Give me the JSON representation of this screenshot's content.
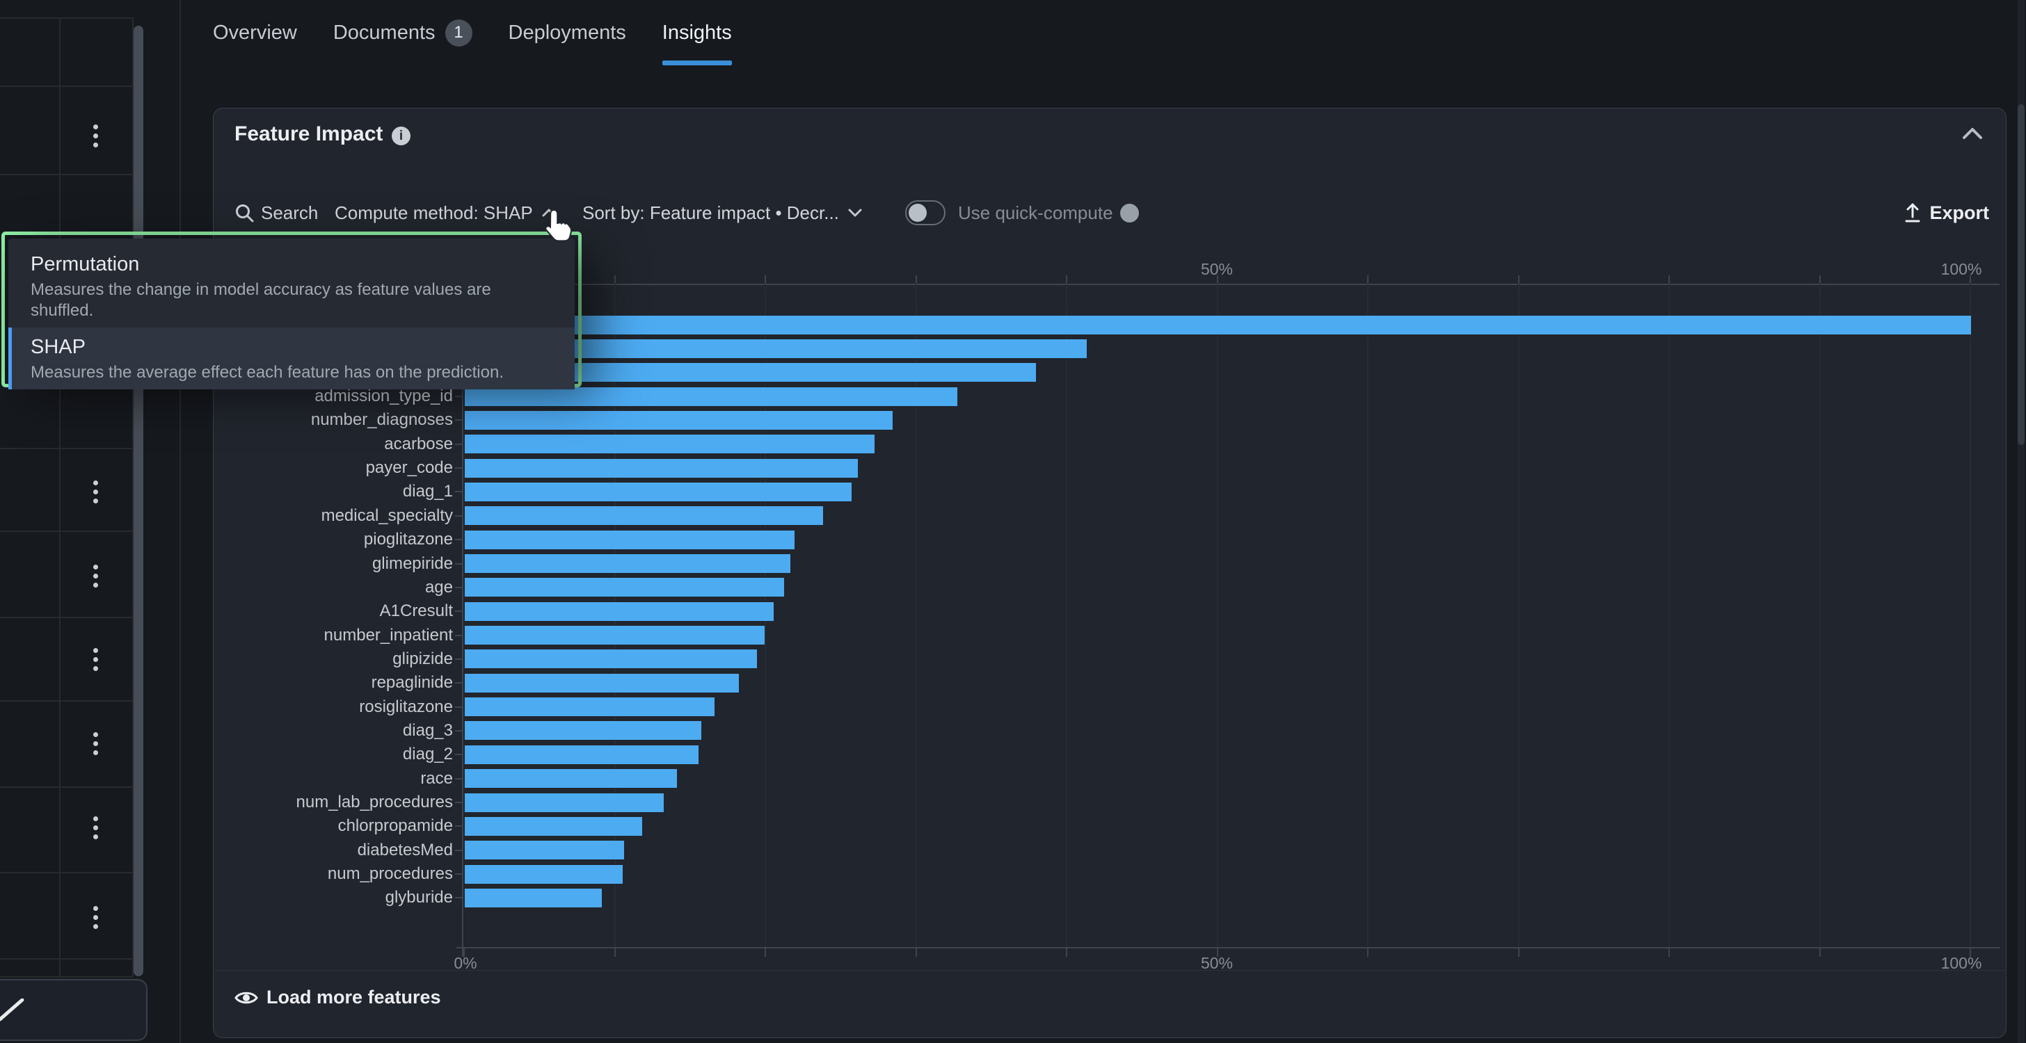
{
  "tabs": {
    "items": [
      {
        "label": "Overview",
        "active": false,
        "badge": null
      },
      {
        "label": "Documents",
        "active": false,
        "badge": "1"
      },
      {
        "label": "Deployments",
        "active": false,
        "badge": null
      },
      {
        "label": "Insights",
        "active": true,
        "badge": null
      }
    ]
  },
  "panel": {
    "title": "Feature Impact",
    "toolbar": {
      "search_label": "Search",
      "compute_method_label": "Compute method: SHAP",
      "sort_by_label": "Sort by: Feature impact • Decr...",
      "use_quick_compute_label": "Use quick-compute",
      "quick_compute_on": false,
      "export_label": "Export"
    },
    "footer": {
      "load_more_label": "Load more features"
    }
  },
  "compute_method_dropdown": {
    "options": [
      {
        "title": "Permutation",
        "description": "Measures the change in model accuracy as feature values are shuffled.",
        "selected": false
      },
      {
        "title": "SHAP",
        "description": "Measures the average effect each feature has on the prediction.",
        "selected": true
      }
    ]
  },
  "chart_data": {
    "type": "bar",
    "orientation": "horizontal",
    "title": "Feature Impact",
    "xlim": [
      0,
      100
    ],
    "grid_interval_pct": 10,
    "top_axis_ticks": [
      "50%",
      "100%"
    ],
    "bottom_axis_ticks": [
      "0%",
      "50%",
      "100%"
    ],
    "bar_color": "#4dabf2",
    "categories": [
      null,
      null,
      null,
      "admission_type_id",
      "number_diagnoses",
      "acarbose",
      "payer_code",
      "diag_1",
      "medical_specialty",
      "pioglitazone",
      "glimepiride",
      "age",
      "A1Cresult",
      "number_inpatient",
      "glipizide",
      "repaglinide",
      "rosiglitazone",
      "diag_3",
      "diag_2",
      "race",
      "num_lab_procedures",
      "chlorpropamide",
      "diabetesMed",
      "num_procedures",
      "glyburide"
    ],
    "values": [
      100,
      41.3,
      37.9,
      32.7,
      28.4,
      27.2,
      26.1,
      25.7,
      23.8,
      21.9,
      21.6,
      21.2,
      20.5,
      19.9,
      19.4,
      18.2,
      16.6,
      15.7,
      15.5,
      14.1,
      13.2,
      11.8,
      10.6,
      10.5,
      9.1
    ]
  },
  "colors": {
    "accent_blue": "#4dabf2",
    "tab_underline": "#3b8fd9",
    "highlight_green": "#8ff0a4",
    "selected_stripe": "#4a9ff2"
  }
}
